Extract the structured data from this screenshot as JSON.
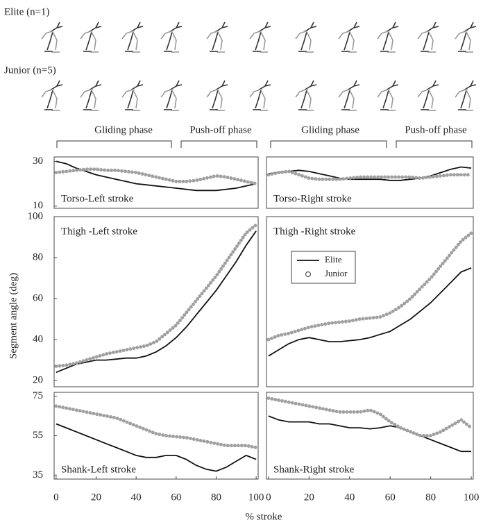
{
  "figure": {
    "groups": [
      "Elite (n=1)",
      "Junior (n=5)"
    ],
    "phases": [
      "Gliding phase",
      "Push-off phase",
      "Gliding phase",
      "Push-off phase"
    ],
    "ylabel": "Segment angle  (deg)",
    "xlabel": "% stroke"
  },
  "chart_data": [
    {
      "type": "line",
      "title": "Torso-Left stroke",
      "x": [
        0,
        5,
        10,
        15,
        20,
        25,
        30,
        35,
        40,
        45,
        50,
        55,
        60,
        65,
        70,
        75,
        80,
        85,
        90,
        95,
        100
      ],
      "xlim": [
        -1,
        101
      ],
      "ylim": [
        9,
        32
      ],
      "yticks": [
        10,
        30
      ],
      "series": [
        {
          "color": "#111111",
          "marker": "line",
          "values": [
            30,
            29,
            27,
            25.5,
            24,
            23,
            22,
            21,
            20,
            19.5,
            19,
            18.5,
            18,
            17.5,
            17,
            17,
            17,
            17.5,
            18,
            19,
            20
          ]
        },
        {
          "color": "#a0a0a0",
          "marker": "circle",
          "values": [
            25,
            25.5,
            26,
            26.5,
            26.5,
            26,
            26,
            25.5,
            25,
            24,
            23,
            22,
            21,
            21,
            21.5,
            22.5,
            23.5,
            23,
            22,
            21,
            20
          ]
        }
      ]
    },
    {
      "type": "line",
      "title": "Torso-Right stroke",
      "x": [
        0,
        5,
        10,
        15,
        20,
        25,
        30,
        35,
        40,
        45,
        50,
        55,
        60,
        65,
        70,
        75,
        80,
        85,
        90,
        95,
        100
      ],
      "xlim": [
        -1,
        101
      ],
      "ylim": [
        9,
        32
      ],
      "series": [
        {
          "color": "#111111",
          "marker": "line",
          "values": [
            24.5,
            25,
            25.5,
            26,
            25.5,
            24.5,
            23.5,
            22.5,
            22,
            22,
            22,
            22,
            21.5,
            21.5,
            22,
            22.5,
            23.5,
            25,
            26.5,
            27.5,
            27
          ]
        },
        {
          "color": "#a0a0a0",
          "marker": "circle",
          "values": [
            24,
            25,
            25.5,
            24,
            22.5,
            22,
            22,
            22,
            22.5,
            23,
            23,
            23,
            23,
            23,
            23,
            22.5,
            23,
            23.5,
            24,
            24,
            24
          ]
        }
      ]
    },
    {
      "type": "line",
      "title": "Thigh -Left stroke",
      "x": [
        0,
        5,
        10,
        15,
        20,
        25,
        30,
        35,
        40,
        45,
        50,
        55,
        60,
        65,
        70,
        75,
        80,
        85,
        90,
        95,
        100
      ],
      "xlim": [
        -1,
        101
      ],
      "ylim": [
        17,
        100
      ],
      "yticks": [
        20,
        40,
        60,
        80,
        100
      ],
      "series": [
        {
          "color": "#111111",
          "marker": "line",
          "values": [
            24,
            26,
            28,
            29,
            30,
            30,
            30.5,
            31,
            31,
            32,
            34,
            37,
            41,
            46,
            52,
            58,
            64,
            71,
            78,
            86,
            93
          ]
        },
        {
          "color": "#a0a0a0",
          "marker": "circle",
          "values": [
            27,
            27.5,
            28.5,
            30,
            31.5,
            33,
            34,
            35,
            36,
            37,
            39,
            43,
            47,
            53,
            59,
            65,
            71,
            78,
            85,
            92,
            96
          ]
        }
      ]
    },
    {
      "type": "line",
      "title": "Thigh -Right stroke",
      "x": [
        0,
        5,
        10,
        15,
        20,
        25,
        30,
        35,
        40,
        45,
        50,
        55,
        60,
        65,
        70,
        75,
        80,
        85,
        90,
        95,
        100
      ],
      "xlim": [
        -1,
        101
      ],
      "ylim": [
        17,
        100
      ],
      "legend": true,
      "series": [
        {
          "name": "Elite",
          "color": "#111111",
          "marker": "line",
          "values": [
            32,
            35,
            38,
            40,
            41,
            40,
            39,
            39,
            39.5,
            40,
            41,
            42.5,
            44,
            47,
            50,
            54,
            58,
            63,
            68,
            73,
            75
          ]
        },
        {
          "name": "Junior",
          "color": "#a0a0a0",
          "marker": "circle",
          "values": [
            40,
            42,
            43,
            44.5,
            46,
            47,
            48,
            48.5,
            49,
            50,
            50.5,
            51,
            53,
            56,
            60,
            65,
            70,
            76,
            82,
            88,
            92
          ]
        }
      ]
    },
    {
      "type": "line",
      "title": "Shank-Left stroke",
      "x": [
        0,
        5,
        10,
        15,
        20,
        25,
        30,
        35,
        40,
        45,
        50,
        55,
        60,
        65,
        70,
        75,
        80,
        85,
        90,
        95,
        100
      ],
      "xlim": [
        -1,
        101
      ],
      "xticks": [
        0,
        20,
        40,
        60,
        80,
        100
      ],
      "ylim": [
        33,
        77
      ],
      "yticks": [
        35,
        55,
        75
      ],
      "series": [
        {
          "color": "#111111",
          "marker": "line",
          "values": [
            61,
            59,
            57,
            55,
            53,
            51,
            49,
            47,
            45,
            44,
            44,
            45,
            45,
            43,
            40,
            38,
            37,
            39,
            42,
            45,
            43
          ]
        },
        {
          "color": "#a0a0a0",
          "marker": "circle",
          "values": [
            70,
            69,
            68,
            67,
            66,
            65,
            64,
            62,
            60,
            58,
            56,
            55,
            54.5,
            54,
            53,
            52,
            51,
            50,
            50,
            50,
            49
          ]
        }
      ]
    },
    {
      "type": "line",
      "title": "Shank-Right stroke",
      "x": [
        0,
        5,
        10,
        15,
        20,
        25,
        30,
        35,
        40,
        45,
        50,
        55,
        60,
        65,
        70,
        75,
        80,
        85,
        90,
        95,
        100
      ],
      "xlim": [
        -1,
        101
      ],
      "xticks": [
        0,
        20,
        40,
        60,
        80,
        100
      ],
      "ylim": [
        33,
        77
      ],
      "series": [
        {
          "color": "#111111",
          "marker": "line",
          "values": [
            65,
            63,
            62,
            62,
            62,
            61,
            61,
            60,
            59,
            59,
            58.5,
            59,
            60,
            59,
            57,
            55,
            53,
            51,
            49,
            47,
            47
          ]
        },
        {
          "color": "#a0a0a0",
          "marker": "circle",
          "values": [
            74,
            73,
            72,
            71,
            70,
            69,
            68,
            67,
            67,
            67,
            68,
            66,
            62,
            59,
            57,
            55,
            55,
            57,
            60,
            63,
            59
          ]
        }
      ]
    }
  ]
}
